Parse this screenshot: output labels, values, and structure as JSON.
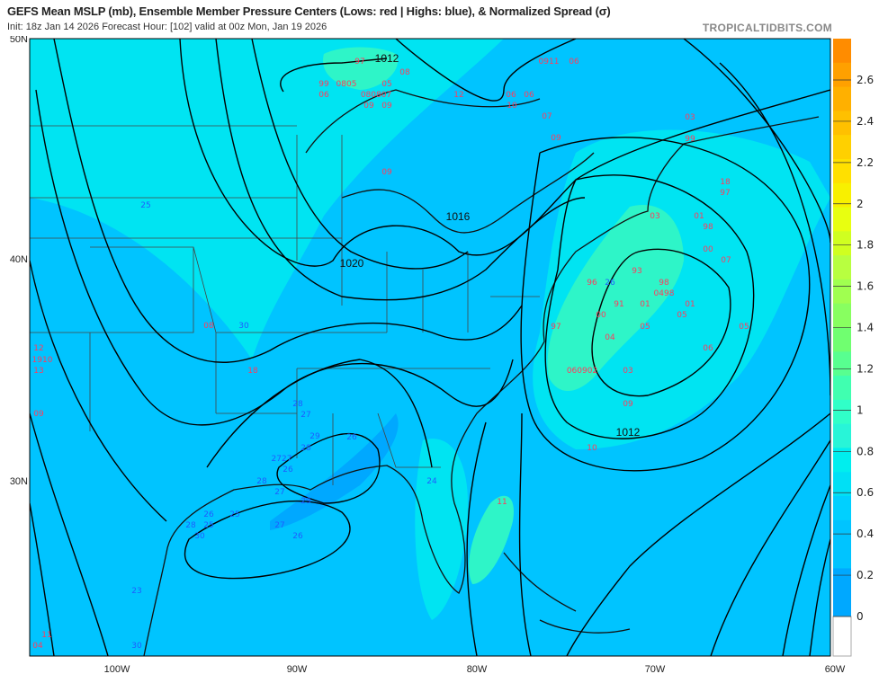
{
  "header": {
    "title": "GEFS Mean MSLP (mb), Ensemble Member Pressure Centers (Lows: red | Highs: blue), & Normalized Spread (σ)",
    "subtitle": "Init: 18z Jan 14 2026   Forecast Hour: [102]   valid at 00z Mon, Jan 19 2026",
    "brand": "TROPICALTIDBITS.COM"
  },
  "map": {
    "lat_labels": [
      "50N",
      "40N",
      "30N"
    ],
    "lon_labels": [
      "100W",
      "90W",
      "80W",
      "70W",
      "60W"
    ],
    "isobar_labels": [
      "1012",
      "1016",
      "1020",
      "1012"
    ],
    "low_color": "#ff3b5c",
    "high_color": "#1f5cff",
    "lows": [
      "97",
      "08",
      "99",
      "0805",
      "05",
      "06",
      "080807",
      "09",
      "09",
      "12",
      "06",
      "10",
      "06",
      "0911",
      "06",
      "07",
      "09",
      "09",
      "03",
      "01",
      "98",
      "00",
      "07",
      "93",
      "96",
      "98",
      "0498",
      "91",
      "01",
      "01",
      "00",
      "05",
      "97",
      "05",
      "05",
      "04",
      "06",
      "060902",
      "03",
      "09",
      "03",
      "99",
      "18",
      "97",
      "10",
      "11",
      "08",
      "18",
      "12",
      "1910",
      "13",
      "09",
      "04",
      "11"
    ],
    "highs": [
      "25",
      "30",
      "28",
      "27",
      "29",
      "28",
      "2727",
      "26",
      "28",
      "27",
      "29",
      "26",
      "24",
      "26",
      "25",
      "28",
      "25",
      "30",
      "27",
      "26",
      "26",
      "23",
      "30"
    ]
  },
  "colorbar": {
    "labels": [
      "2.6",
      "2.4",
      "2.2",
      "2",
      "1.8",
      "1.6",
      "1.4",
      "1.2",
      "1",
      "0.8",
      "0.6",
      "0.4",
      "0.2",
      "0"
    ],
    "colors": [
      "#ff8c00",
      "#ffa000",
      "#ffb000",
      "#ffc000",
      "#ffd000",
      "#ffe000",
      "#f8f000",
      "#e8ff10",
      "#d0ff20",
      "#b8ff40",
      "#a0ff50",
      "#88ff60",
      "#70ff70",
      "#58ff90",
      "#40ffb0",
      "#30ffc8",
      "#28f5d8",
      "#00eeee",
      "#00e0f5",
      "#00d0ff",
      "#00c4ff",
      "#00c4ff",
      "#00a8ff",
      "#00a8ff"
    ]
  }
}
